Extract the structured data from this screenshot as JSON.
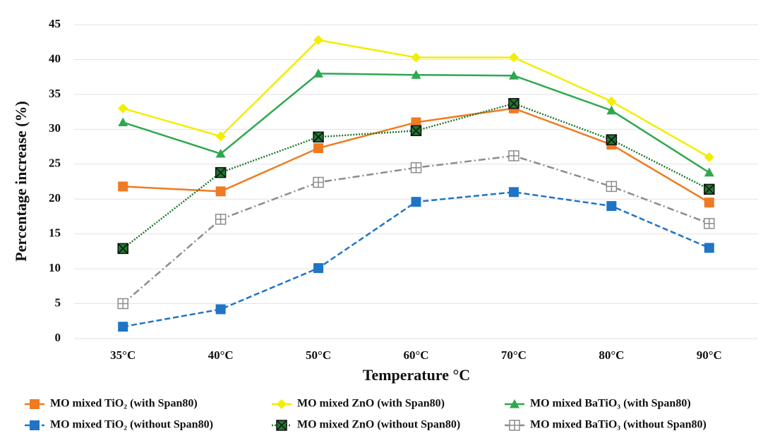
{
  "chart_data": {
    "type": "line",
    "y_label": "Percentage increase (%)",
    "x_label": "Temperature °C",
    "categories": [
      "35°C",
      "40°C",
      "50°C",
      "60°C",
      "70°C",
      "80°C",
      "90°C"
    ],
    "ylim": [
      0,
      45
    ],
    "yticks": [
      0,
      5,
      10,
      15,
      20,
      25,
      30,
      35,
      40,
      45
    ],
    "grid": true,
    "series": [
      {
        "name": "MO mixed TiO₂ (with Span80)",
        "color": "#f07a22",
        "marker": "square",
        "dash": "solid",
        "values": [
          21.8,
          21.1,
          27.3,
          31.0,
          33.0,
          27.8,
          19.5
        ]
      },
      {
        "name": "MO mixed ZnO (with Span80)",
        "color": "#f2ee00",
        "marker": "diamond",
        "dash": "solid",
        "values": [
          33.0,
          29.0,
          42.8,
          40.3,
          40.3,
          34.0,
          26.0
        ]
      },
      {
        "name": "MO mixed BaTiO₃ (with Span80)",
        "color": "#2ea84f",
        "marker": "triangle",
        "dash": "solid",
        "values": [
          31.0,
          26.5,
          38.0,
          37.8,
          37.7,
          32.7,
          23.8
        ]
      },
      {
        "name": "MO mixed TiO₂ (without Span80)",
        "color": "#1f74c6",
        "marker": "square",
        "dash": "dashed",
        "values": [
          1.7,
          4.2,
          10.1,
          19.6,
          21.0,
          19.0,
          13.0
        ]
      },
      {
        "name": "MO mixed ZnO (without Span80)",
        "color": "#1e7a2e",
        "marker": "xsquare",
        "dash": "dotted",
        "values": [
          12.9,
          23.8,
          28.9,
          29.8,
          33.7,
          28.5,
          21.4
        ]
      },
      {
        "name": "MO mixed BaTiO₃ (without Span80)",
        "color": "#8c8c8c",
        "marker": "opensquare",
        "dash": "dashdot",
        "values": [
          5.0,
          17.1,
          22.4,
          24.5,
          26.2,
          21.8,
          16.5
        ]
      }
    ]
  }
}
